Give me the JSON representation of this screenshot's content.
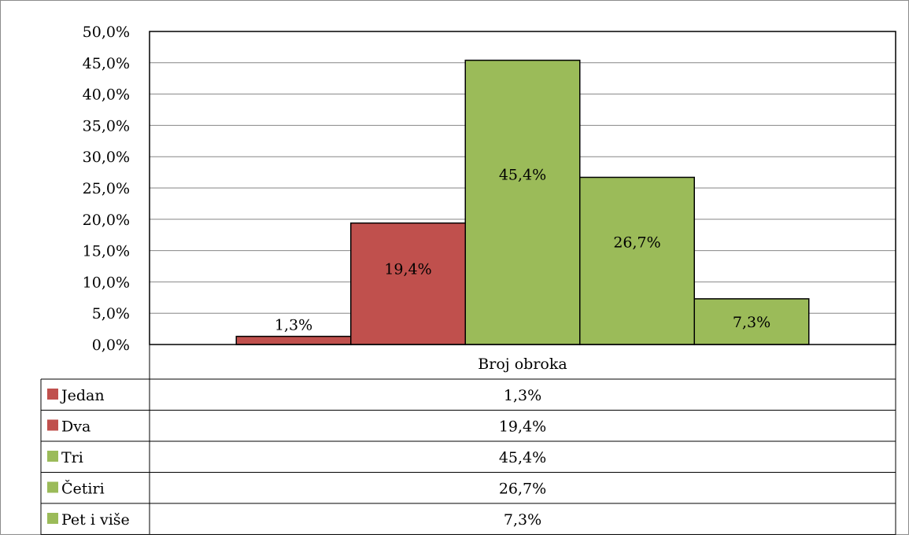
{
  "chart_data": {
    "type": "bar",
    "category_label": "Broj obroka",
    "categories": [
      "Jedan",
      "Dva",
      "Tri",
      "Četiri",
      "Pet i više"
    ],
    "values": [
      1.3,
      19.4,
      45.4,
      26.7,
      7.3
    ],
    "value_labels": [
      "1,3%",
      "19,4%",
      "45,4%",
      "26,7%",
      "7,3%"
    ],
    "colors": [
      "#c0504d",
      "#c0504d",
      "#9bbb59",
      "#9bbb59",
      "#9bbb59"
    ],
    "ylim": [
      0,
      50
    ],
    "y_ticks": [
      "0,0%",
      "5,0%",
      "10,0%",
      "15,0%",
      "20,0%",
      "25,0%",
      "30,0%",
      "35,0%",
      "40,0%",
      "45,0%",
      "50,0%"
    ],
    "grid": true,
    "legend": "data-table-below",
    "title": "",
    "xlabel": "",
    "ylabel": ""
  }
}
